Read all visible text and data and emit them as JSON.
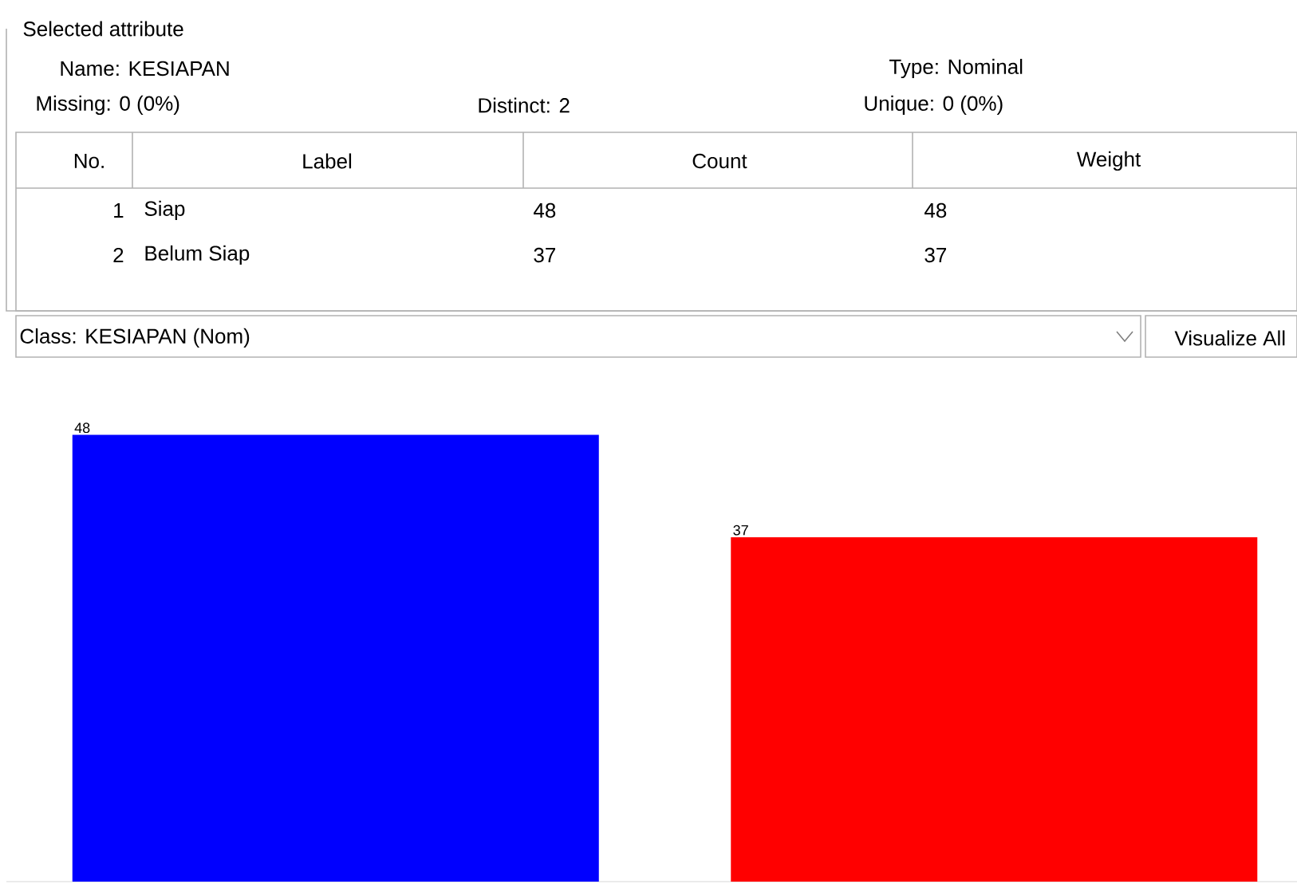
{
  "chart_data": {
    "type": "bar",
    "categories": [
      null,
      null
    ],
    "values": [
      48,
      37
    ],
    "colors": [
      "#0000ff",
      "#ff0000"
    ],
    "data_labels": true,
    "annotations": [
      "Selected attribute",
      "Name: KESIAPAN",
      "Missing: 0 (0%)",
      "Distinct: 2",
      "Type: Nominal",
      "Unique: 0 (0%)",
      "No.",
      "Label",
      "Count",
      "Weight",
      "1",
      "Siap",
      "48",
      "48",
      "2",
      "Belum Siap",
      "37",
      "37",
      "Class: KESIAPAN (Nom)",
      "Visualize All"
    ]
  }
}
